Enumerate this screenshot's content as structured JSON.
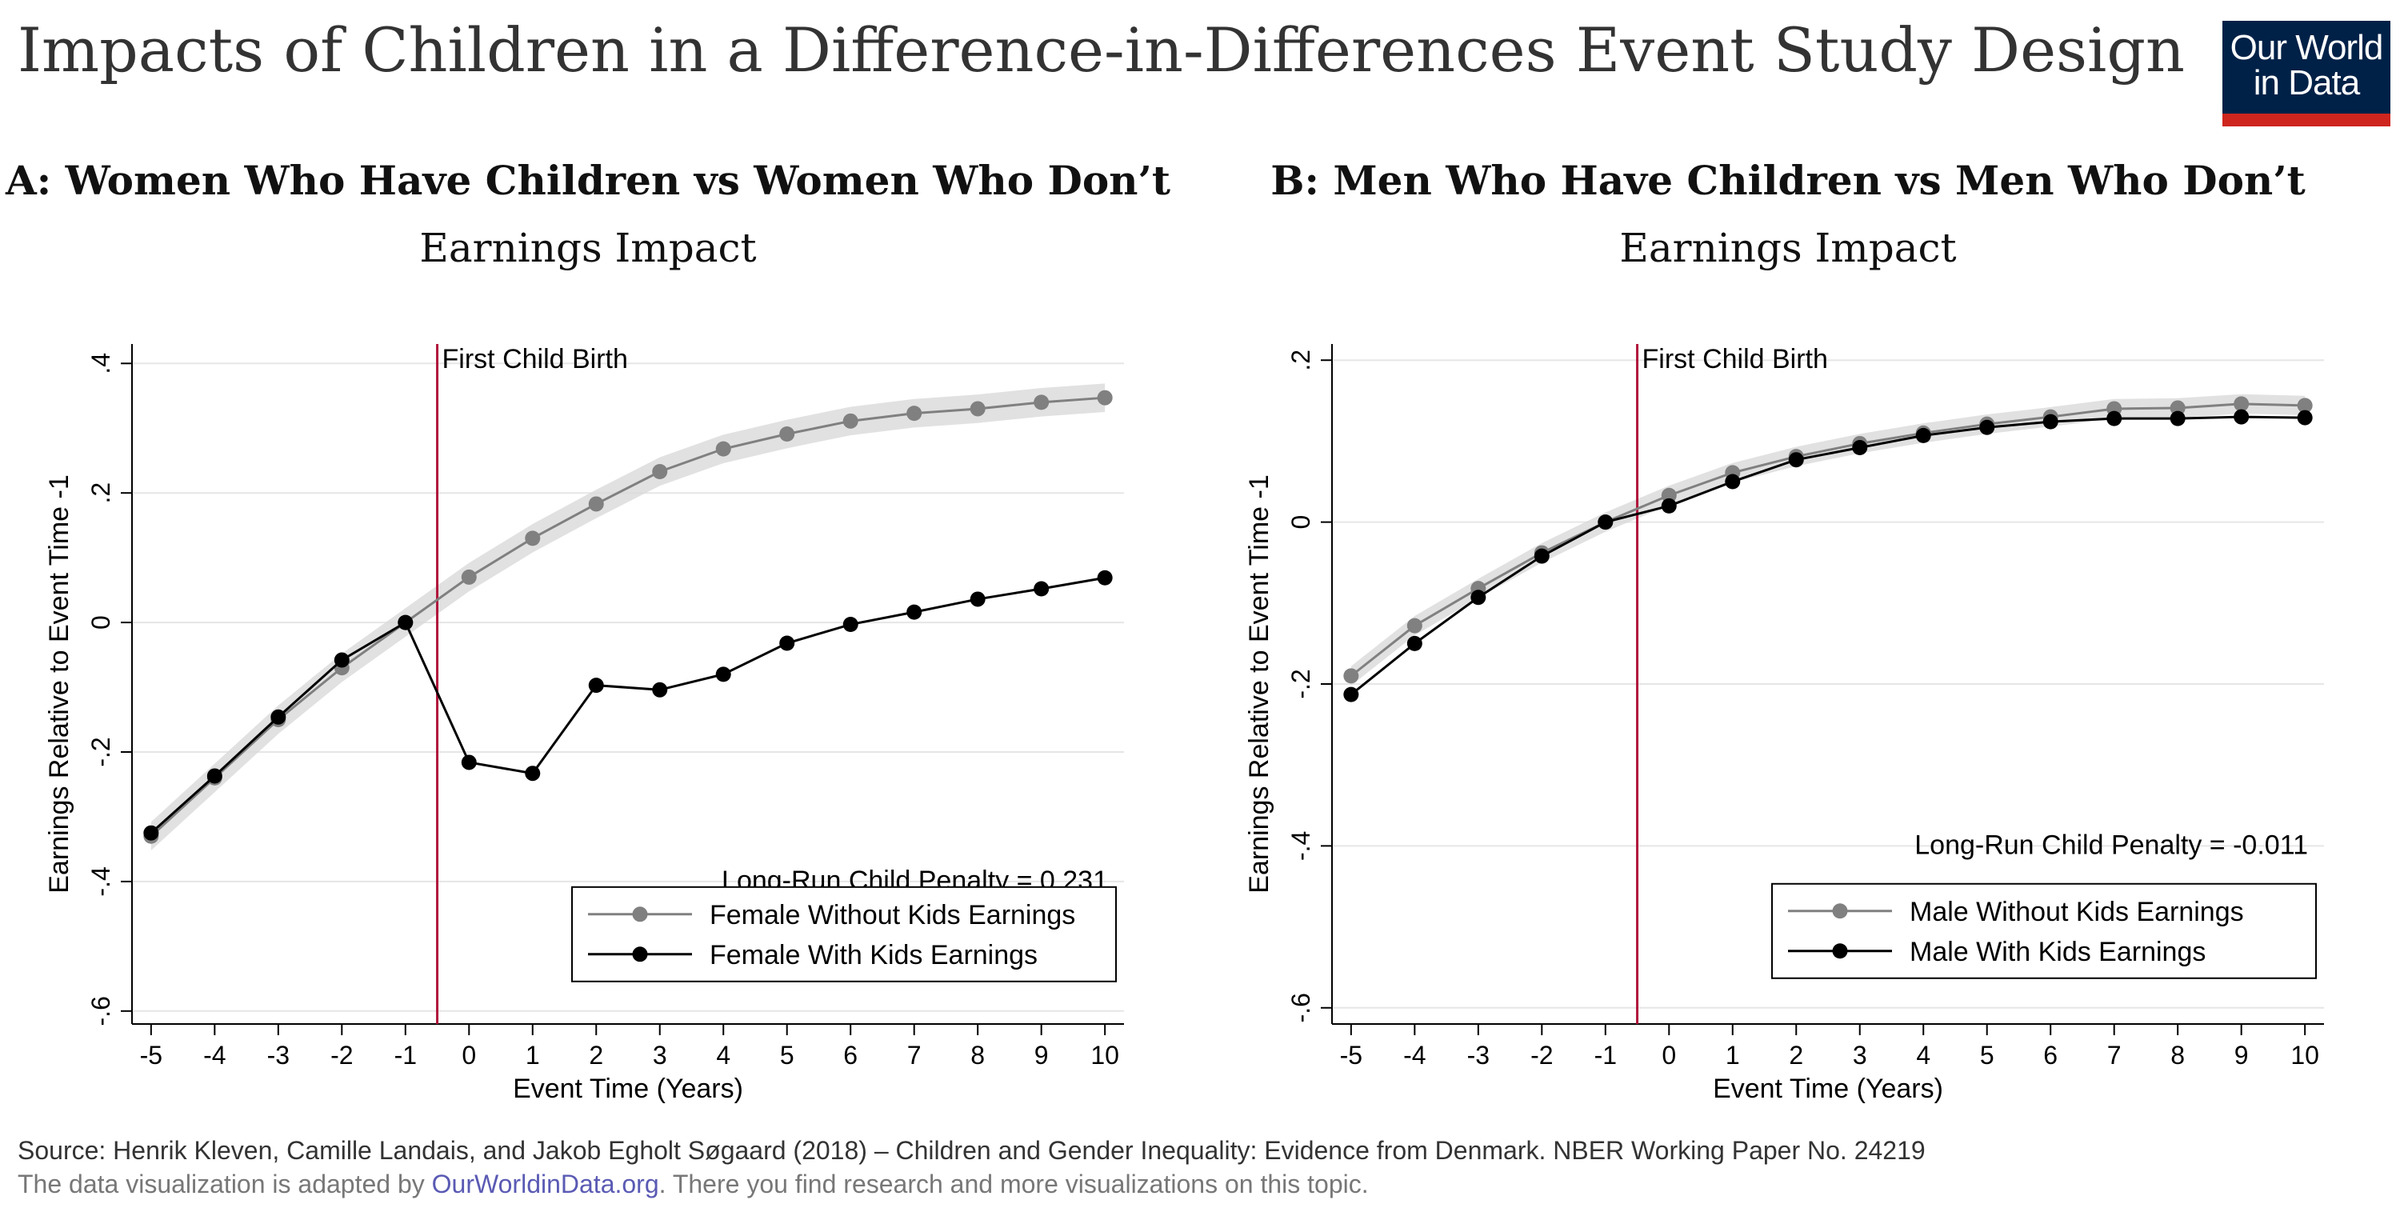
{
  "title": "Impacts of Children in a Difference-in-Differences Event Study Design",
  "logo": {
    "line1": "Our World",
    "line2": "in Data"
  },
  "colors": {
    "without_kids": "#808080",
    "with_kids": "#000000",
    "event_line": "#b0123a",
    "band": "#d9d9d9",
    "logo_bg": "#002147",
    "logo_bar": "#ce261e"
  },
  "chart_data": [
    {
      "type": "line",
      "panel_title": "A: Women Who Have Children vs Women Who Don’t",
      "subtitle": "Earnings Impact",
      "xlabel": "Event Time (Years)",
      "ylabel": "Earnings Relative to Event Time -1",
      "x": [
        -5,
        -4,
        -3,
        -2,
        -1,
        0,
        1,
        2,
        3,
        4,
        5,
        6,
        7,
        8,
        9,
        10
      ],
      "xticks": [
        "-5",
        "-4",
        "-3",
        "-2",
        "-1",
        "0",
        "1",
        "2",
        "3",
        "4",
        "5",
        "6",
        "7",
        "8",
        "9",
        "10"
      ],
      "yticks": [
        {
          "v": 0.4,
          "label": ".4"
        },
        {
          "v": 0.2,
          "label": ".2"
        },
        {
          "v": 0,
          "label": "0"
        },
        {
          "v": -0.2,
          "label": "-.2"
        },
        {
          "v": -0.4,
          "label": "-.4"
        },
        {
          "v": -0.6,
          "label": "-.6"
        }
      ],
      "ylim": [
        -0.62,
        0.43
      ],
      "xlim": [
        -5.3,
        10.3
      ],
      "event_line_x": -0.5,
      "event_label": "First Child Birth",
      "annotation": "Long-Run Child Penalty = 0.231",
      "series": [
        {
          "name": "Female Without Kids Earnings",
          "values": [
            -0.33,
            -0.24,
            -0.15,
            -0.07,
            0,
            0.07,
            0.13,
            0.183,
            0.233,
            0.268,
            0.291,
            0.311,
            0.323,
            0.33,
            0.34,
            0.347
          ],
          "band": 0.022
        },
        {
          "name": "Female With Kids Earnings",
          "values": [
            -0.325,
            -0.237,
            -0.146,
            -0.058,
            0,
            -0.216,
            -0.233,
            -0.097,
            -0.104,
            -0.08,
            -0.032,
            -0.003,
            0.016,
            0.036,
            0.052,
            0.069
          ]
        }
      ]
    },
    {
      "type": "line",
      "panel_title": "B: Men Who Have Children vs Men Who Don’t",
      "subtitle": "Earnings Impact",
      "xlabel": "Event Time (Years)",
      "ylabel": "Earnings Relative to Event Time -1",
      "x": [
        -5,
        -4,
        -3,
        -2,
        -1,
        0,
        1,
        2,
        3,
        4,
        5,
        6,
        7,
        8,
        9,
        10
      ],
      "xticks": [
        "-5",
        "-4",
        "-3",
        "-2",
        "-1",
        "0",
        "1",
        "2",
        "3",
        "4",
        "5",
        "6",
        "7",
        "8",
        "9",
        "10"
      ],
      "yticks": [
        {
          "v": 0.2,
          "label": ".2"
        },
        {
          "v": 0,
          "label": "0"
        },
        {
          "v": -0.2,
          "label": "-.2"
        },
        {
          "v": -0.4,
          "label": "-.4"
        },
        {
          "v": -0.6,
          "label": "-.6"
        }
      ],
      "ylim": [
        -0.62,
        0.22
      ],
      "xlim": [
        -5.3,
        10.3
      ],
      "event_line_x": -0.5,
      "event_label": "First Child Birth",
      "annotation": "Long-Run Child Penalty = -0.011",
      "series": [
        {
          "name": "Male Without Kids Earnings",
          "values": [
            -0.19,
            -0.128,
            -0.082,
            -0.038,
            0,
            0.033,
            0.061,
            0.081,
            0.097,
            0.11,
            0.121,
            0.13,
            0.14,
            0.141,
            0.146,
            0.144
          ],
          "band": 0.012
        },
        {
          "name": "Male With Kids Earnings",
          "values": [
            -0.213,
            -0.15,
            -0.093,
            -0.042,
            0,
            0.02,
            0.05,
            0.077,
            0.092,
            0.107,
            0.117,
            0.124,
            0.128,
            0.128,
            0.13,
            0.129
          ]
        }
      ]
    }
  ],
  "footer": {
    "source": "Source: Henrik Kleven, Camille Landais, and Jakob Egholt Søgaard (2018) – Children and Gender Inequality: Evidence from Denmark. NBER Working Paper No. 24219",
    "adapted_prefix": "The data visualization is adapted by ",
    "adapted_link": "OurWorldinData.org",
    "adapted_suffix": ". There you find research and more visualizations on this topic."
  }
}
